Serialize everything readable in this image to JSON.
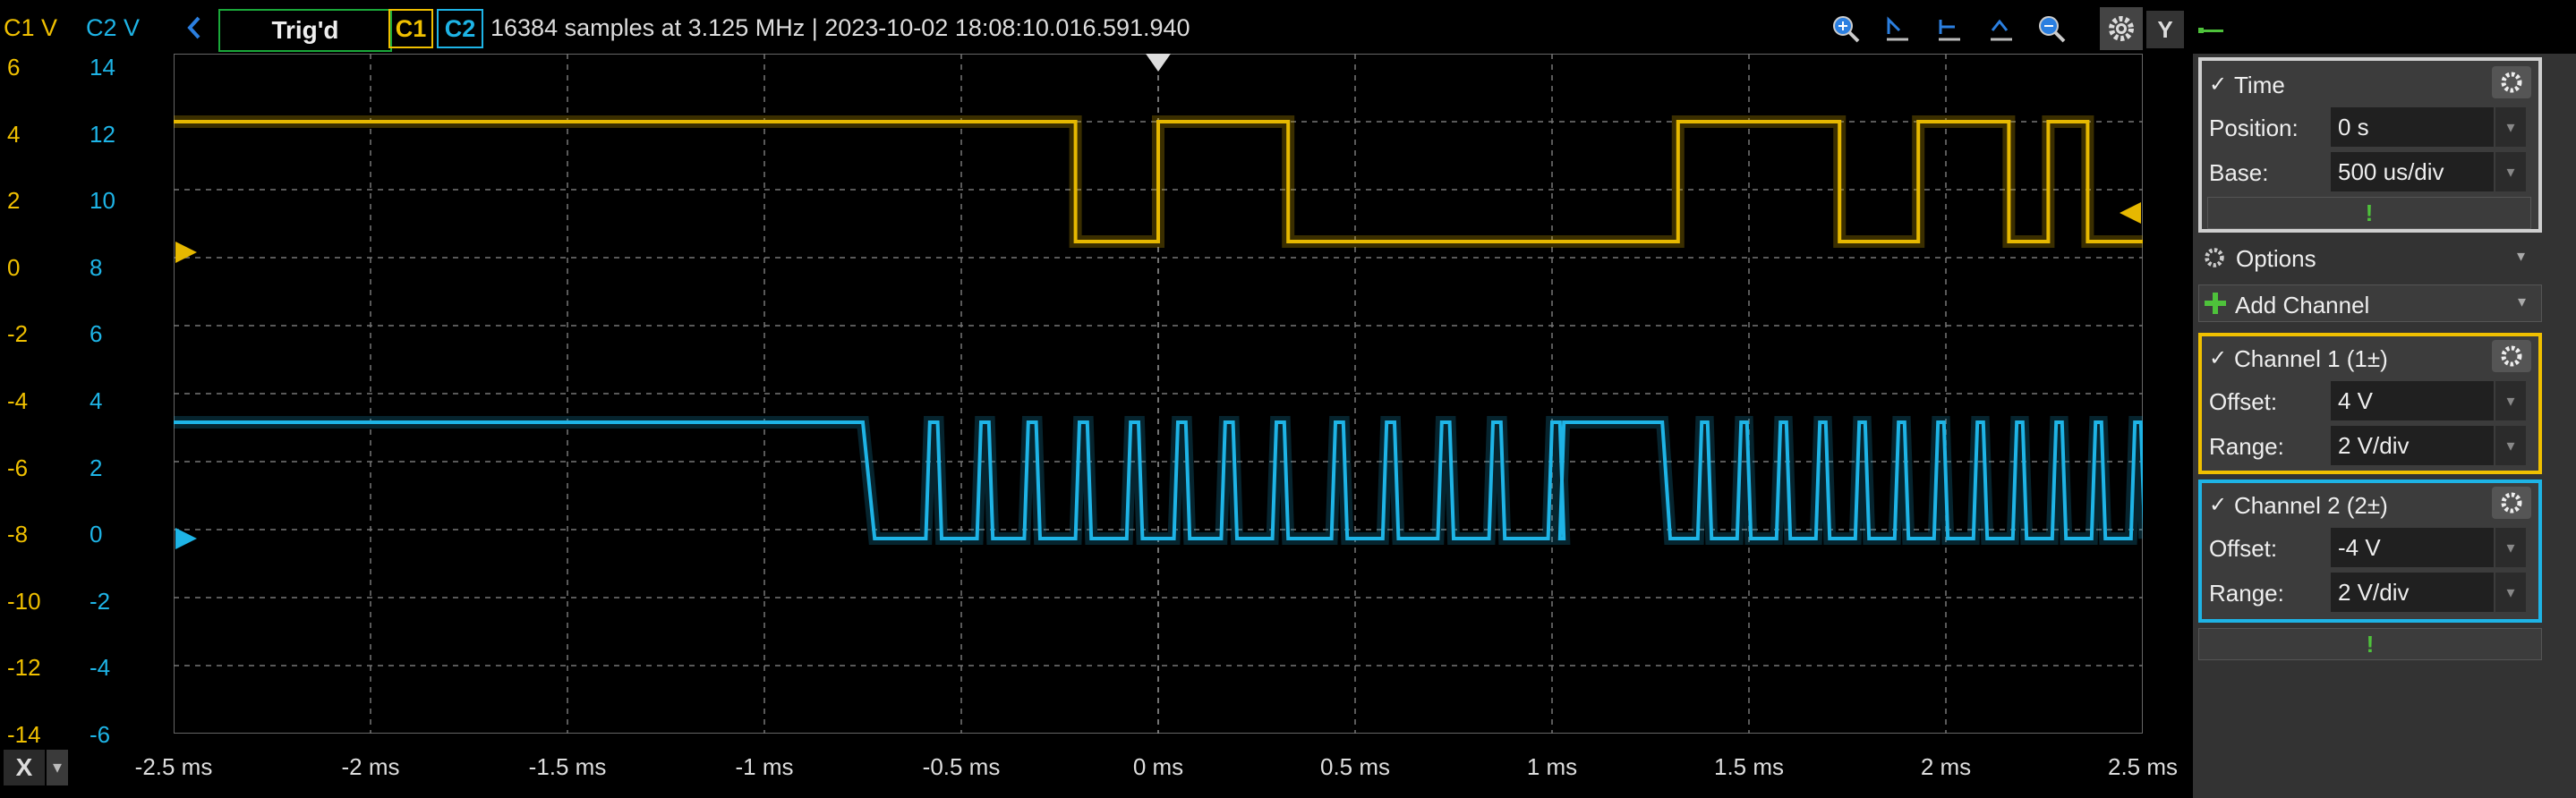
{
  "axis_headers": {
    "c1": "C1 V",
    "c2": "C2 V"
  },
  "toolbar": {
    "trig_status": "Trig'd",
    "c1_button": "C1",
    "c2_button": "C2",
    "acquisition_info": "16384 samples at 3.125 MHz | 2023-10-02 18:08:10.016.591.940",
    "y_button": "Y"
  },
  "y_axis_c1": [
    "6",
    "4",
    "2",
    "0",
    "-2",
    "-4",
    "-6",
    "-8",
    "-10",
    "-12",
    "-14"
  ],
  "y_axis_c2": [
    "14",
    "12",
    "10",
    "8",
    "6",
    "4",
    "2",
    "0",
    "-2",
    "-4",
    "-6"
  ],
  "x_axis": [
    "-2.5 ms",
    "-2 ms",
    "-1.5 ms",
    "-1 ms",
    "-0.5 ms",
    "0 ms",
    "0.5 ms",
    "1 ms",
    "1.5 ms",
    "2 ms",
    "2.5 ms"
  ],
  "bottom_left": {
    "x_button": "X",
    "dropdown": "▾"
  },
  "panel": {
    "time": {
      "title": "Time",
      "position_label": "Position:",
      "position_value": "0 s",
      "base_label": "Base:",
      "base_value": "500 us/div"
    },
    "options_label": "Options",
    "add_channel_label": "Add Channel",
    "channel1": {
      "title": "Channel 1 (1±)",
      "offset_label": "Offset:",
      "offset_value": "4 V",
      "range_label": "Range:",
      "range_value": "2 V/div"
    },
    "channel2": {
      "title": "Channel 2 (2±)",
      "offset_label": "Offset:",
      "offset_value": "-4 V",
      "range_label": "Range:",
      "range_value": "2 V/div"
    },
    "green_mark": "!"
  },
  "colors": {
    "c1": "#f0c000",
    "c2": "#1eb4e6",
    "trig": "#1aa83a"
  }
}
